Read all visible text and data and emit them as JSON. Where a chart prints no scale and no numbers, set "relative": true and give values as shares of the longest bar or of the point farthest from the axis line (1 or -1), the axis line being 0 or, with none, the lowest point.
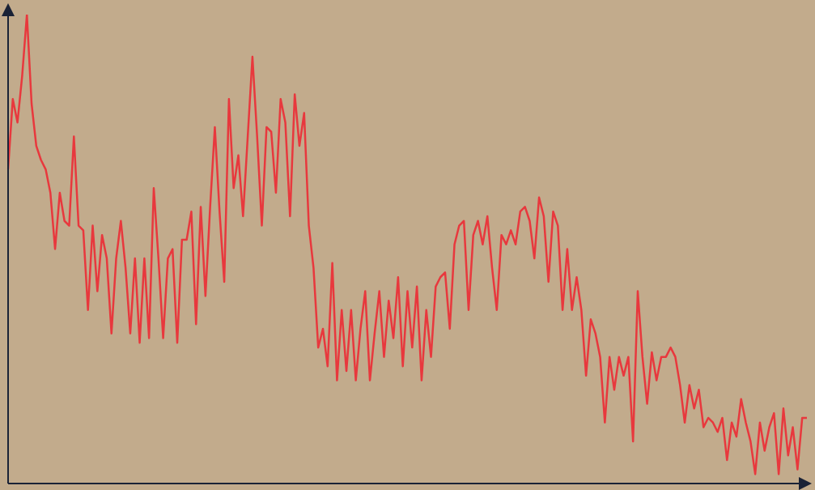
{
  "chart_data": {
    "type": "line",
    "relative": true,
    "color": "#e8383d",
    "categories": [
      null,
      null,
      null,
      null,
      null,
      null,
      null,
      null,
      null,
      null,
      null,
      null,
      null,
      null,
      null,
      null,
      null,
      null,
      null,
      null,
      null,
      null,
      null,
      null,
      null,
      null,
      null,
      null,
      null,
      null,
      null,
      null,
      null,
      null,
      null,
      null,
      null,
      null,
      null,
      null,
      null,
      null,
      null,
      null,
      null,
      null,
      null,
      null,
      null,
      null,
      null,
      null,
      null,
      null,
      null,
      null,
      null,
      null,
      null,
      null,
      null,
      null,
      null,
      null,
      null,
      null,
      null,
      null,
      null,
      null,
      null,
      null,
      null,
      null,
      null,
      null,
      null,
      null,
      null,
      null,
      null,
      null,
      null,
      null,
      null,
      null,
      null,
      null,
      null,
      null,
      null,
      null,
      null,
      null,
      null,
      null,
      null,
      null,
      null,
      null,
      null,
      null,
      null,
      null,
      null,
      null,
      null,
      null,
      null,
      null,
      null,
      null,
      null,
      null,
      null,
      null,
      null,
      null,
      null,
      null,
      null,
      null,
      null,
      null,
      null,
      null,
      null,
      null,
      null,
      null,
      null,
      null,
      null,
      null,
      null,
      null,
      null,
      null,
      null,
      null,
      null,
      null,
      null,
      null,
      null,
      null,
      null,
      null,
      null,
      null,
      null,
      null,
      null,
      null,
      null,
      null,
      null,
      null,
      null,
      null,
      null,
      null,
      null,
      null,
      null,
      null,
      null,
      null,
      null,
      null,
      null
    ],
    "values": [
      0.67,
      0.82,
      0.77,
      0.87,
      1.0,
      0.81,
      0.72,
      0.69,
      0.67,
      0.62,
      0.5,
      0.62,
      0.56,
      0.55,
      0.74,
      0.55,
      0.54,
      0.37,
      0.55,
      0.41,
      0.53,
      0.48,
      0.32,
      0.48,
      0.56,
      0.46,
      0.32,
      0.48,
      0.3,
      0.48,
      0.31,
      0.63,
      0.48,
      0.31,
      0.48,
      0.5,
      0.3,
      0.52,
      0.52,
      0.58,
      0.34,
      0.59,
      0.4,
      0.59,
      0.76,
      0.58,
      0.43,
      0.82,
      0.63,
      0.7,
      0.57,
      0.74,
      0.91,
      0.74,
      0.55,
      0.76,
      0.75,
      0.62,
      0.82,
      0.77,
      0.57,
      0.83,
      0.72,
      0.79,
      0.55,
      0.46,
      0.29,
      0.33,
      0.25,
      0.47,
      0.22,
      0.37,
      0.24,
      0.37,
      0.22,
      0.33,
      0.41,
      0.22,
      0.32,
      0.41,
      0.27,
      0.39,
      0.31,
      0.44,
      0.25,
      0.41,
      0.29,
      0.42,
      0.22,
      0.37,
      0.27,
      0.42,
      0.44,
      0.45,
      0.33,
      0.51,
      0.55,
      0.56,
      0.37,
      0.53,
      0.56,
      0.51,
      0.57,
      0.46,
      0.37,
      0.53,
      0.51,
      0.54,
      0.51,
      0.58,
      0.59,
      0.56,
      0.48,
      0.61,
      0.57,
      0.43,
      0.58,
      0.55,
      0.37,
      0.5,
      0.37,
      0.44,
      0.37,
      0.23,
      0.35,
      0.32,
      0.27,
      0.13,
      0.27,
      0.2,
      0.27,
      0.23,
      0.27,
      0.09,
      0.41,
      0.27,
      0.17,
      0.28,
      0.22,
      0.27,
      0.27,
      0.29,
      0.27,
      0.21,
      0.13,
      0.21,
      0.16,
      0.2,
      0.12,
      0.14,
      0.13,
      0.11,
      0.14,
      0.05,
      0.13,
      0.1,
      0.18,
      0.13,
      0.09,
      0.02,
      0.13,
      0.07,
      0.12,
      0.15,
      0.02,
      0.16,
      0.06,
      0.12,
      0.03,
      0.14,
      0.14
    ]
  }
}
